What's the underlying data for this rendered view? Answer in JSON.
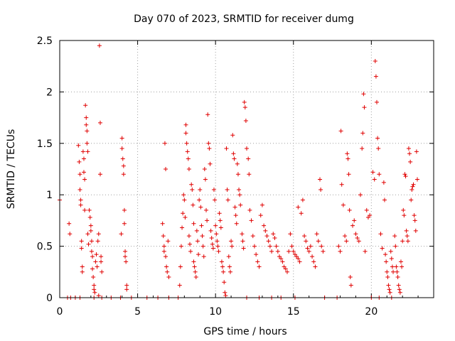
{
  "chart_data": {
    "type": "scatter",
    "title": "Day 070 of 2023, SRMTID for receiver dumg",
    "xlabel": "GPS time / hours",
    "ylabel": "SRMTID / TECUs",
    "xlim": [
      0,
      24
    ],
    "ylim": [
      0,
      2.5
    ],
    "xticks": [
      0,
      5,
      10,
      15,
      20
    ],
    "yticks": [
      0,
      0.5,
      1,
      1.5,
      2,
      2.5
    ],
    "xtick_labels": [
      "0",
      "5",
      "10",
      "15",
      "20"
    ],
    "ytick_labels": [
      "0",
      "0.5",
      "1",
      "1.5",
      "2",
      "2.5"
    ],
    "grid": true,
    "marker": "+",
    "color": "#e00000",
    "series": [
      {
        "name": "SRMTID",
        "points": [
          [
            0.0,
            0.95
          ],
          [
            0.6,
            0.72
          ],
          [
            0.65,
            0.62
          ],
          [
            0.5,
            0.0
          ],
          [
            0.7,
            0.0
          ],
          [
            1.0,
            0.0
          ],
          [
            1.2,
            1.48
          ],
          [
            1.25,
            1.32
          ],
          [
            1.3,
            1.2
          ],
          [
            1.3,
            1.05
          ],
          [
            1.35,
            0.95
          ],
          [
            1.35,
            0.9
          ],
          [
            1.4,
            0.55
          ],
          [
            1.4,
            0.48
          ],
          [
            1.45,
            0.3
          ],
          [
            1.45,
            0.25
          ],
          [
            1.5,
            1.42
          ],
          [
            1.55,
            1.35
          ],
          [
            1.55,
            1.22
          ],
          [
            1.6,
            1.15
          ],
          [
            1.6,
            0.85
          ],
          [
            1.65,
            1.87
          ],
          [
            1.7,
            1.75
          ],
          [
            1.7,
            1.68
          ],
          [
            1.75,
            1.62
          ],
          [
            1.75,
            1.5
          ],
          [
            1.8,
            1.42
          ],
          [
            1.8,
            0.62
          ],
          [
            1.85,
            0.52
          ],
          [
            1.9,
            0.85
          ],
          [
            1.95,
            0.78
          ],
          [
            2.0,
            0.7
          ],
          [
            2.0,
            0.65
          ],
          [
            2.05,
            0.55
          ],
          [
            2.05,
            0.45
          ],
          [
            2.1,
            0.4
          ],
          [
            2.1,
            0.28
          ],
          [
            2.15,
            0.2
          ],
          [
            2.2,
            0.12
          ],
          [
            2.2,
            0.08
          ],
          [
            2.25,
            0.05
          ],
          [
            2.3,
            0.35
          ],
          [
            2.35,
            0.42
          ],
          [
            2.4,
            0.3
          ],
          [
            2.45,
            0.55
          ],
          [
            2.5,
            0.62
          ],
          [
            2.5,
            0.02
          ],
          [
            2.55,
            2.45
          ],
          [
            2.6,
            1.7
          ],
          [
            2.6,
            1.2
          ],
          [
            2.65,
            0.4
          ],
          [
            2.65,
            0.35
          ],
          [
            2.7,
            0.0
          ],
          [
            2.7,
            0.25
          ],
          [
            1.3,
            0.0
          ],
          [
            2.2,
            0.0
          ],
          [
            3.3,
            0.0
          ],
          [
            3.9,
            0.0
          ],
          [
            3.95,
            0.62
          ],
          [
            4.0,
            1.55
          ],
          [
            4.0,
            1.45
          ],
          [
            4.05,
            1.35
          ],
          [
            4.1,
            1.28
          ],
          [
            4.1,
            1.2
          ],
          [
            4.15,
            0.85
          ],
          [
            4.15,
            0.72
          ],
          [
            4.2,
            0.45
          ],
          [
            4.2,
            0.4
          ],
          [
            4.25,
            0.35
          ],
          [
            4.3,
            0.12
          ],
          [
            4.3,
            0.08
          ],
          [
            4.6,
            0.0
          ],
          [
            5.6,
            0.0
          ],
          [
            6.3,
            0.0
          ],
          [
            6.6,
            0.72
          ],
          [
            6.65,
            0.6
          ],
          [
            6.7,
            0.5
          ],
          [
            6.7,
            0.45
          ],
          [
            6.75,
            1.5
          ],
          [
            6.8,
            1.25
          ],
          [
            6.8,
            0.4
          ],
          [
            6.85,
            0.3
          ],
          [
            6.9,
            0.25
          ],
          [
            6.95,
            0.55
          ],
          [
            7.0,
            0.2
          ],
          [
            7.0,
            0.0
          ],
          [
            7.6,
            0.0
          ],
          [
            7.7,
            0.12
          ],
          [
            7.75,
            0.3
          ],
          [
            7.8,
            0.5
          ],
          [
            7.85,
            0.68
          ],
          [
            7.9,
            0.82
          ],
          [
            7.95,
            1.0
          ],
          [
            8.0,
            0.95
          ],
          [
            8.05,
            0.78
          ],
          [
            8.1,
            1.68
          ],
          [
            8.1,
            1.6
          ],
          [
            8.15,
            1.5
          ],
          [
            8.2,
            1.42
          ],
          [
            8.25,
            1.35
          ],
          [
            8.3,
            1.25
          ],
          [
            8.3,
            0.6
          ],
          [
            8.35,
            0.52
          ],
          [
            8.4,
            0.45
          ],
          [
            8.45,
            1.1
          ],
          [
            8.5,
            1.05
          ],
          [
            8.55,
            0.9
          ],
          [
            8.6,
            0.72
          ],
          [
            8.6,
            0.35
          ],
          [
            8.65,
            0.3
          ],
          [
            8.7,
            0.25
          ],
          [
            8.75,
            0.2
          ],
          [
            8.8,
            0.65
          ],
          [
            8.85,
            0.55
          ],
          [
            8.9,
            0.42
          ],
          [
            8.95,
            0.95
          ],
          [
            9.0,
            1.05
          ],
          [
            9.05,
            0.88
          ],
          [
            9.1,
            0.7
          ],
          [
            9.15,
            0.6
          ],
          [
            9.2,
            0.5
          ],
          [
            9.25,
            0.4
          ],
          [
            9.3,
            1.25
          ],
          [
            9.35,
            1.15
          ],
          [
            9.4,
            0.85
          ],
          [
            9.45,
            0.75
          ],
          [
            9.5,
            1.78
          ],
          [
            9.55,
            1.5
          ],
          [
            9.6,
            1.45
          ],
          [
            9.65,
            1.3
          ],
          [
            9.7,
            0.65
          ],
          [
            9.75,
            0.58
          ],
          [
            9.8,
            0.52
          ],
          [
            9.85,
            0.48
          ],
          [
            9.9,
            1.05
          ],
          [
            9.95,
            0.95
          ],
          [
            10.0,
            0.7
          ],
          [
            10.05,
            0.62
          ],
          [
            10.1,
            0.55
          ],
          [
            10.15,
            0.5
          ],
          [
            10.2,
            0.45
          ],
          [
            10.25,
            0.82
          ],
          [
            10.3,
            0.75
          ],
          [
            10.35,
            0.68
          ],
          [
            10.4,
            0.35
          ],
          [
            10.45,
            0.3
          ],
          [
            10.5,
            0.25
          ],
          [
            10.55,
            0.15
          ],
          [
            10.6,
            0.05
          ],
          [
            10.65,
            0.02
          ],
          [
            10.7,
            1.45
          ],
          [
            10.75,
            1.05
          ],
          [
            10.8,
            0.95
          ],
          [
            10.85,
            0.4
          ],
          [
            10.9,
            0.3
          ],
          [
            10.95,
            0.25
          ],
          [
            11.0,
            0.55
          ],
          [
            11.05,
            0.5
          ],
          [
            11.1,
            1.58
          ],
          [
            11.15,
            1.4
          ],
          [
            11.2,
            1.35
          ],
          [
            11.25,
            0.88
          ],
          [
            11.3,
            0.8
          ],
          [
            11.35,
            0.72
          ],
          [
            11.4,
            1.3
          ],
          [
            11.45,
            1.2
          ],
          [
            11.5,
            1.05
          ],
          [
            11.55,
            1.0
          ],
          [
            11.6,
            0.9
          ],
          [
            11.7,
            0.62
          ],
          [
            11.75,
            0.55
          ],
          [
            11.8,
            0.48
          ],
          [
            11.85,
            1.9
          ],
          [
            11.9,
            1.85
          ],
          [
            11.95,
            1.72
          ],
          [
            12.0,
            1.45
          ],
          [
            12.0,
            0.0
          ],
          [
            12.1,
            1.35
          ],
          [
            12.15,
            1.2
          ],
          [
            12.2,
            0.85
          ],
          [
            12.3,
            0.75
          ],
          [
            12.4,
            0.6
          ],
          [
            12.5,
            0.5
          ],
          [
            12.6,
            0.42
          ],
          [
            12.7,
            0.35
          ],
          [
            12.8,
            0.3
          ],
          [
            12.9,
            0.8
          ],
          [
            13.0,
            0.9
          ],
          [
            13.1,
            0.7
          ],
          [
            13.2,
            0.65
          ],
          [
            13.3,
            0.6
          ],
          [
            13.4,
            0.55
          ],
          [
            13.5,
            0.5
          ],
          [
            13.6,
            0.45
          ],
          [
            13.7,
            0.62
          ],
          [
            13.8,
            0.58
          ],
          [
            13.9,
            0.5
          ],
          [
            14.0,
            0.45
          ],
          [
            14.1,
            0.4
          ],
          [
            14.2,
            0.38
          ],
          [
            14.3,
            0.35
          ],
          [
            14.4,
            0.3
          ],
          [
            14.5,
            0.28
          ],
          [
            14.6,
            0.25
          ],
          [
            14.7,
            0.45
          ],
          [
            14.8,
            0.62
          ],
          [
            14.9,
            0.5
          ],
          [
            15.0,
            0.45
          ],
          [
            15.1,
            0.42
          ],
          [
            15.2,
            0.4
          ],
          [
            15.3,
            0.38
          ],
          [
            15.4,
            0.35
          ],
          [
            12.8,
            0.0
          ],
          [
            13.6,
            0.0
          ],
          [
            14.2,
            0.0
          ],
          [
            15.1,
            0.0
          ],
          [
            15.3,
            0.88
          ],
          [
            15.5,
            0.82
          ],
          [
            15.6,
            0.95
          ],
          [
            15.7,
            0.6
          ],
          [
            15.8,
            0.55
          ],
          [
            15.9,
            0.48
          ],
          [
            16.0,
            0.45
          ],
          [
            16.1,
            0.5
          ],
          [
            16.2,
            0.4
          ],
          [
            16.3,
            0.35
          ],
          [
            16.4,
            0.3
          ],
          [
            16.5,
            0.62
          ],
          [
            16.6,
            0.55
          ],
          [
            16.7,
            1.15
          ],
          [
            16.75,
            1.05
          ],
          [
            16.8,
            0.5
          ],
          [
            16.9,
            0.45
          ],
          [
            17.0,
            0.0
          ],
          [
            17.8,
            0.0
          ],
          [
            17.9,
            0.5
          ],
          [
            18.0,
            0.45
          ],
          [
            18.05,
            1.62
          ],
          [
            18.1,
            1.1
          ],
          [
            18.2,
            0.9
          ],
          [
            18.3,
            0.6
          ],
          [
            18.4,
            0.55
          ],
          [
            18.45,
            1.4
          ],
          [
            18.5,
            1.35
          ],
          [
            18.55,
            1.2
          ],
          [
            18.6,
            0.85
          ],
          [
            18.65,
            0.2
          ],
          [
            18.7,
            0.12
          ],
          [
            18.8,
            0.7
          ],
          [
            18.9,
            0.75
          ],
          [
            19.0,
            0.62
          ],
          [
            19.1,
            0.58
          ],
          [
            19.2,
            0.55
          ],
          [
            19.3,
            1.0
          ],
          [
            19.4,
            1.45
          ],
          [
            19.45,
            1.6
          ],
          [
            19.5,
            1.98
          ],
          [
            19.55,
            1.85
          ],
          [
            19.6,
            0.45
          ],
          [
            19.7,
            0.85
          ],
          [
            19.8,
            0.78
          ],
          [
            19.9,
            0.8
          ],
          [
            20.0,
            0.0
          ],
          [
            20.1,
            1.22
          ],
          [
            20.2,
            1.15
          ],
          [
            20.25,
            2.3
          ],
          [
            20.3,
            2.15
          ],
          [
            20.35,
            1.9
          ],
          [
            20.4,
            1.55
          ],
          [
            20.45,
            1.45
          ],
          [
            20.5,
            1.2
          ],
          [
            20.6,
            0.62
          ],
          [
            20.7,
            0.48
          ],
          [
            20.8,
            1.12
          ],
          [
            20.85,
            0.95
          ],
          [
            20.9,
            0.42
          ],
          [
            20.95,
            0.35
          ],
          [
            21.0,
            0.25
          ],
          [
            21.05,
            0.2
          ],
          [
            21.1,
            0.12
          ],
          [
            21.15,
            0.08
          ],
          [
            21.2,
            0.05
          ],
          [
            21.25,
            0.45
          ],
          [
            21.3,
            0.38
          ],
          [
            21.35,
            0.3
          ],
          [
            21.4,
            0.25
          ],
          [
            21.5,
            0.6
          ],
          [
            21.55,
            0.5
          ],
          [
            21.6,
            0.3
          ],
          [
            21.65,
            0.25
          ],
          [
            21.7,
            0.2
          ],
          [
            21.75,
            0.12
          ],
          [
            21.8,
            0.08
          ],
          [
            21.85,
            0.05
          ],
          [
            21.9,
            0.35
          ],
          [
            21.95,
            0.3
          ],
          [
            22.0,
            0.55
          ],
          [
            22.05,
            0.85
          ],
          [
            22.1,
            0.8
          ],
          [
            22.15,
            1.2
          ],
          [
            22.2,
            1.18
          ],
          [
            22.25,
            0.65
          ],
          [
            22.3,
            0.6
          ],
          [
            22.35,
            0.55
          ],
          [
            22.4,
            1.45
          ],
          [
            22.45,
            1.4
          ],
          [
            22.5,
            1.32
          ],
          [
            22.55,
            0.95
          ],
          [
            22.6,
            1.05
          ],
          [
            22.65,
            1.08
          ],
          [
            22.7,
            1.1
          ],
          [
            22.75,
            0.8
          ],
          [
            22.8,
            0.75
          ],
          [
            22.85,
            0.65
          ],
          [
            22.9,
            1.42
          ],
          [
            22.95,
            1.15
          ],
          [
            20.5,
            0.0
          ],
          [
            21.3,
            0.0
          ]
        ]
      }
    ]
  }
}
